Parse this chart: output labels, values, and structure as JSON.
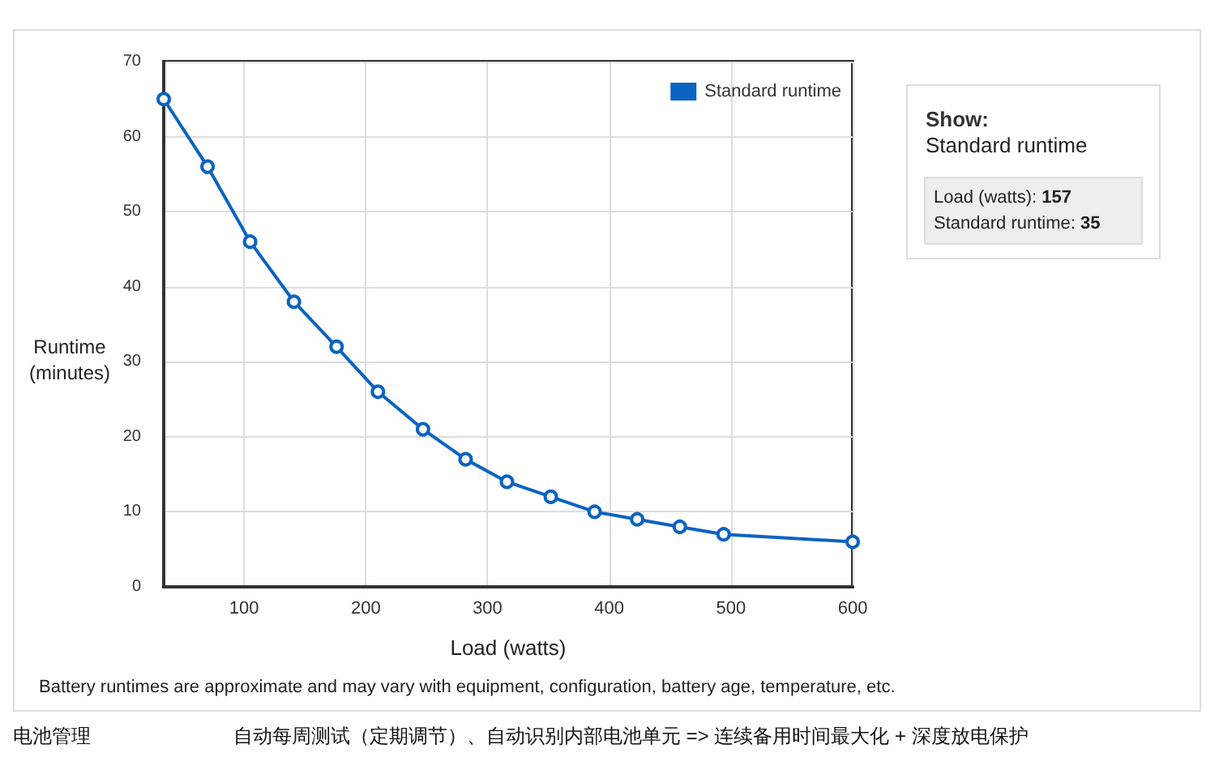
{
  "chart_data": {
    "type": "line",
    "xlabel": "Load (watts)",
    "ylabel": "Runtime (minutes)",
    "x": [
      34,
      70,
      105,
      141,
      176,
      210,
      247,
      282,
      316,
      352,
      388,
      423,
      458,
      494,
      600
    ],
    "series": [
      {
        "name": "Standard runtime",
        "color": "#0b63c1",
        "values": [
          65,
          56,
          46,
          38,
          32,
          26,
          21,
          17,
          14,
          12,
          10,
          9,
          8,
          7,
          6
        ]
      }
    ],
    "xlim": [
      34,
      600
    ],
    "xticks": [
      100,
      200,
      300,
      400,
      500,
      600
    ],
    "ylim": [
      0,
      70
    ],
    "yticks": [
      0,
      10,
      20,
      30,
      40,
      50,
      60,
      70
    ],
    "grid": true,
    "legend": "top right",
    "marker": "circle",
    "line_style": "solid",
    "annotations": [
      "Show:",
      "Standard runtime",
      "Load (watts): 157",
      "Standard runtime: 35",
      "Battery runtimes are approximate and may vary with equipment, configuration, battery age, temperature, etc.",
      "电池管理",
      "自动每周测试（定期调节）、自动识别内部电池单元 => 连续备用时间最大化 + 深度放电保护"
    ]
  }
}
